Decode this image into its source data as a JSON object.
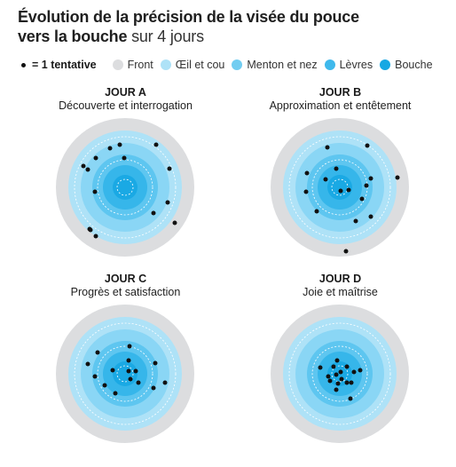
{
  "title": {
    "line1": "Évolution de la précision de la visée du pouce",
    "line2_bold": "vers la bouche",
    "line2_light": " sur 4 jours"
  },
  "legend": {
    "tentative_label": "= 1 tentative",
    "items": [
      {
        "label": "Front",
        "color": "#dcdddf"
      },
      {
        "label": "Œil et cou",
        "color": "#aee2f7"
      },
      {
        "label": "Menton et nez",
        "color": "#72cdf1"
      },
      {
        "label": "Lèvres",
        "color": "#3fb9ec"
      },
      {
        "label": "Bouche",
        "color": "#16a8e3"
      }
    ]
  },
  "ring_colors": [
    "#dcdddf",
    "#aee2f7",
    "#8ad6f5",
    "#5ec6f0",
    "#36b6ea",
    "#1aa9e4"
  ],
  "panels": [
    {
      "title": "JOUR A",
      "subtitle": "Découverte et interrogation",
      "attempts": [
        [
          -17,
          -44
        ],
        [
          -6,
          -48
        ],
        [
          -1,
          -33
        ],
        [
          -33,
          -33
        ],
        [
          -42,
          -20
        ],
        [
          35,
          -48
        ],
        [
          50,
          -21
        ],
        [
          48,
          17
        ],
        [
          56,
          40
        ],
        [
          -34,
          5
        ],
        [
          -39,
          48
        ],
        [
          -33,
          55
        ],
        [
          -40,
          47
        ],
        [
          32,
          29
        ],
        [
          -47,
          -24
        ]
      ]
    },
    {
      "title": "JOUR B",
      "subtitle": "Approximation et entêtement",
      "attempts": [
        [
          -14,
          -45
        ],
        [
          31,
          -47
        ],
        [
          65,
          -11
        ],
        [
          -4,
          -21
        ],
        [
          -37,
          -16
        ],
        [
          -16,
          -9
        ],
        [
          1,
          4
        ],
        [
          10,
          3
        ],
        [
          35,
          -10
        ],
        [
          -38,
          5
        ],
        [
          25,
          13
        ],
        [
          -26,
          27
        ],
        [
          35,
          33
        ],
        [
          18,
          38
        ],
        [
          7,
          72
        ],
        [
          30,
          -2
        ]
      ]
    },
    {
      "title": "JOUR C",
      "subtitle": "Progrès et satisfaction",
      "attempts": [
        [
          5,
          -31
        ],
        [
          -42,
          -11
        ],
        [
          -34,
          3
        ],
        [
          -31,
          -24
        ],
        [
          4,
          -15
        ],
        [
          -14,
          -4
        ],
        [
          4,
          -3
        ],
        [
          12,
          -3
        ],
        [
          6,
          6
        ],
        [
          -23,
          13
        ],
        [
          15,
          10
        ],
        [
          34,
          -12
        ],
        [
          32,
          16
        ],
        [
          45,
          10
        ],
        [
          -11,
          22
        ],
        [
          -52,
          85
        ]
      ]
    },
    {
      "title": "JOUR D",
      "subtitle": "Joie et maîtrise",
      "attempts": [
        [
          -22,
          -7
        ],
        [
          -3,
          -15
        ],
        [
          8,
          -8
        ],
        [
          -7,
          -8
        ],
        [
          1,
          -2
        ],
        [
          16,
          -2
        ],
        [
          23,
          -4
        ],
        [
          -13,
          3
        ],
        [
          -4,
          1
        ],
        [
          2,
          6
        ],
        [
          -11,
          8
        ],
        [
          -2,
          11
        ],
        [
          8,
          10
        ],
        [
          13,
          10
        ],
        [
          -4,
          18
        ],
        [
          12,
          28
        ]
      ]
    }
  ]
}
